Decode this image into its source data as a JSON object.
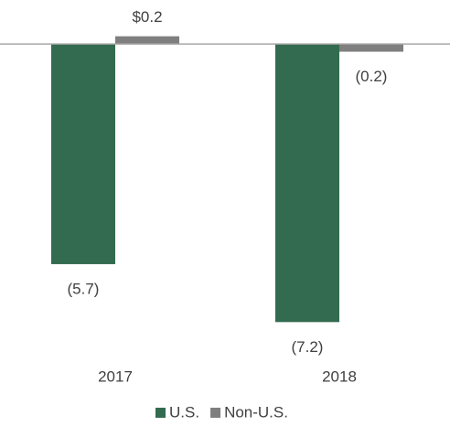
{
  "chart_data": {
    "type": "bar",
    "categories": [
      "2017",
      "2018"
    ],
    "series": [
      {
        "name": "U.S.",
        "color": "#336b50",
        "values": [
          -5.7,
          -7.2
        ],
        "value_labels": [
          "(5.7)",
          "(7.2)"
        ]
      },
      {
        "name": "Non-U.S.",
        "color": "#7f7f80",
        "values": [
          0.2,
          -0.2
        ],
        "value_labels": [
          "$0.2",
          "(0.2)"
        ]
      }
    ],
    "ylim": [
      -7.5,
      0.5
    ]
  }
}
